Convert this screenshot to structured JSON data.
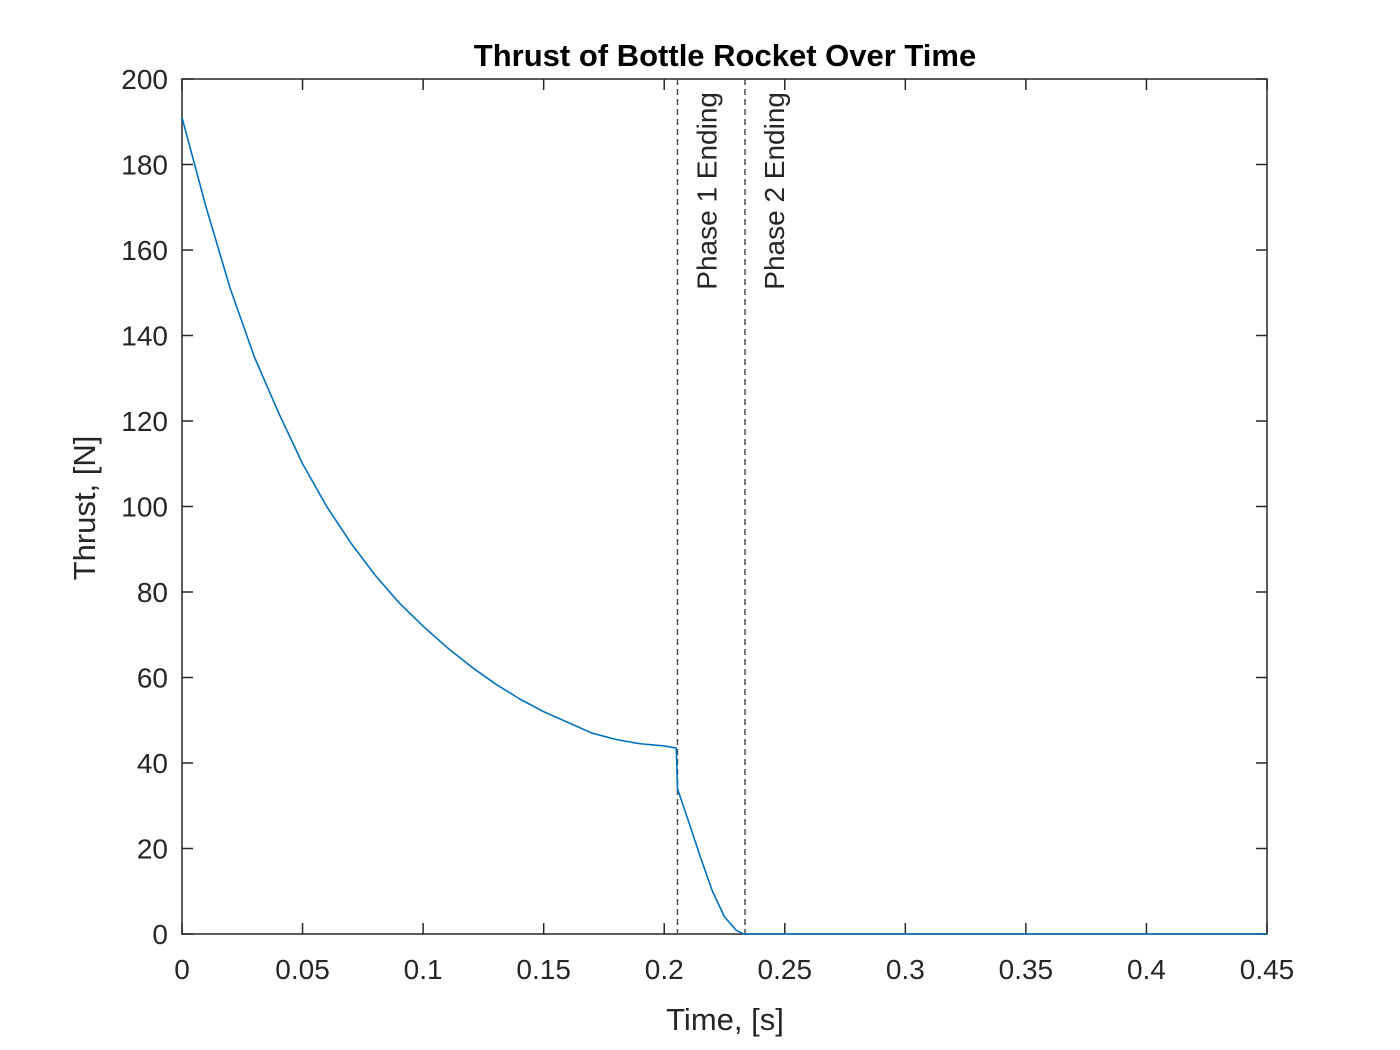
{
  "chart_data": {
    "type": "line",
    "title": "Thrust of Bottle Rocket Over Time",
    "xlabel": "Time, [s]",
    "ylabel": "Thrust, [N]",
    "xlim": [
      0,
      0.45
    ],
    "ylim": [
      0,
      200
    ],
    "xticks": [
      0,
      0.05,
      0.1,
      0.15,
      0.2,
      0.25,
      0.3,
      0.35,
      0.4,
      0.45
    ],
    "xtick_labels": [
      "0",
      "0.05",
      "0.1",
      "0.15",
      "0.2",
      "0.25",
      "0.3",
      "0.35",
      "0.4",
      "0.45"
    ],
    "yticks": [
      0,
      20,
      40,
      60,
      80,
      100,
      120,
      140,
      160,
      180,
      200
    ],
    "ytick_labels": [
      "0",
      "20",
      "40",
      "60",
      "80",
      "100",
      "120",
      "140",
      "160",
      "180",
      "200"
    ],
    "grid": false,
    "series": [
      {
        "color": "#0072BD",
        "x": [
          0,
          0.01,
          0.02,
          0.03,
          0.04,
          0.05,
          0.06,
          0.07,
          0.08,
          0.09,
          0.1,
          0.11,
          0.12,
          0.13,
          0.14,
          0.15,
          0.16,
          0.17,
          0.18,
          0.19,
          0.2,
          0.205,
          0.2055,
          0.21,
          0.215,
          0.22,
          0.225,
          0.23,
          0.233,
          0.235,
          0.24,
          0.3,
          0.35,
          0.4,
          0.45
        ],
        "y": [
          191,
          170,
          151,
          135,
          122,
          110,
          100,
          91.5,
          84,
          77.5,
          72,
          67,
          62.5,
          58.5,
          55,
          52,
          49.5,
          47,
          45.5,
          44.5,
          44,
          43.5,
          34,
          26.5,
          18,
          10,
          4,
          0.8,
          0,
          0,
          0,
          0,
          0,
          0,
          0
        ]
      }
    ],
    "vlines": [
      {
        "x": 0.2055,
        "label": "Phase 1 Ending",
        "color": "#4d4d4d",
        "style": "dashed"
      },
      {
        "x": 0.2335,
        "label": "Phase 2 Ending",
        "color": "#4d4d4d",
        "style": "dashed"
      }
    ]
  }
}
